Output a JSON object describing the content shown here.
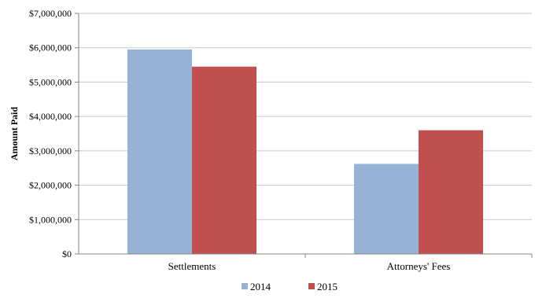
{
  "chart_data": {
    "type": "bar",
    "title": "",
    "xlabel": "",
    "ylabel": "Amount Paid",
    "categories": [
      "Settlements",
      "Attorneys' Fees"
    ],
    "series": [
      {
        "name": "2014",
        "color": "#95b3d7",
        "values": [
          5950000,
          2620000
        ]
      },
      {
        "name": "2015",
        "color": "#c0504d",
        "values": [
          5450000,
          3600000
        ]
      }
    ],
    "ylim": [
      0,
      7000000
    ],
    "yticks": [
      0,
      1000000,
      2000000,
      3000000,
      4000000,
      5000000,
      6000000,
      7000000
    ],
    "ytick_labels": [
      "$0",
      "$1,000,000",
      "$2,000,000",
      "$3,000,000",
      "$4,000,000",
      "$5,000,000",
      "$6,000,000",
      "$7,000,000"
    ],
    "grid": true,
    "legend_position": "bottom"
  }
}
